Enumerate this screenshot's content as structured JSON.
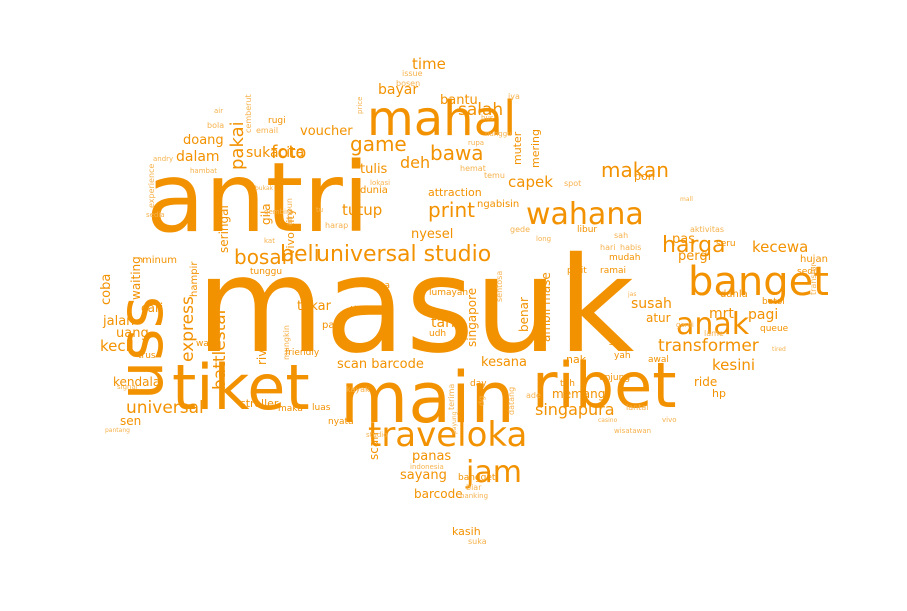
{
  "colors": {
    "background": "#ffffff",
    "word": "#f39200",
    "word_light": "#f6b24d"
  },
  "words": [
    {
      "t": "masuk"
    },
    {
      "t": "antri"
    },
    {
      "t": "tiket"
    },
    {
      "t": "main"
    },
    {
      "t": "uss"
    },
    {
      "t": "ribet"
    },
    {
      "t": "mahal"
    },
    {
      "t": "banget"
    },
    {
      "t": "traveloka"
    },
    {
      "t": "wahana"
    },
    {
      "t": "anak"
    },
    {
      "t": "jam"
    },
    {
      "t": "universal studio"
    },
    {
      "t": "bosan"
    },
    {
      "t": "beli"
    },
    {
      "t": "harga"
    },
    {
      "t": "makan"
    },
    {
      "t": "game"
    },
    {
      "t": "bawa"
    },
    {
      "t": "print"
    },
    {
      "t": "foto"
    },
    {
      "t": "pakai"
    },
    {
      "t": "salah"
    },
    {
      "t": "express"
    },
    {
      "t": "battlestar"
    },
    {
      "t": "universal"
    },
    {
      "t": "singapura"
    },
    {
      "t": "transformer"
    },
    {
      "t": "kecewa"
    },
    {
      "t": "kesini"
    },
    {
      "t": "capek"
    },
    {
      "t": "tutup"
    },
    {
      "t": "time"
    },
    {
      "t": "bayar"
    },
    {
      "t": "bantu"
    },
    {
      "t": "deh"
    },
    {
      "t": "dalam"
    },
    {
      "t": "sukacita"
    },
    {
      "t": "voucher"
    },
    {
      "t": "doang"
    },
    {
      "t": "tulis"
    },
    {
      "t": "nyesel"
    },
    {
      "t": "pas"
    },
    {
      "t": "pergi"
    },
    {
      "t": "susah"
    },
    {
      "t": "pagi"
    },
    {
      "t": "mrt"
    },
    {
      "t": "tukar"
    },
    {
      "t": "tarik"
    },
    {
      "t": "scan barcode"
    },
    {
      "t": "kesana"
    },
    {
      "t": "panas"
    },
    {
      "t": "sayang"
    },
    {
      "t": "barcode"
    },
    {
      "t": "scan"
    },
    {
      "t": "memang"
    },
    {
      "t": "ambil mase"
    },
    {
      "t": "benar"
    },
    {
      "t": "kecil"
    },
    {
      "t": "uang"
    },
    {
      "t": "jalan"
    },
    {
      "t": "coba"
    },
    {
      "t": "cari"
    },
    {
      "t": "kendala"
    },
    {
      "t": "waiting"
    },
    {
      "t": "sen"
    },
    {
      "t": "seringai"
    },
    {
      "t": "gila"
    },
    {
      "t": "vivo city"
    },
    {
      "t": "river raft"
    },
    {
      "t": "stroller"
    },
    {
      "t": "mering"
    },
    {
      "t": "muter"
    },
    {
      "t": "singapore"
    },
    {
      "t": "nak"
    },
    {
      "t": "ride"
    },
    {
      "t": "hp"
    },
    {
      "t": "atur"
    },
    {
      "t": "kasih"
    },
    {
      "t": "suka"
    },
    {
      "t": "pon"
    },
    {
      "t": "hujan"
    },
    {
      "t": "attraction"
    },
    {
      "t": "ngabisin"
    },
    {
      "t": "dunia"
    },
    {
      "t": "minum"
    },
    {
      "t": "hampir"
    },
    {
      "t": "wajib"
    },
    {
      "t": "trus"
    },
    {
      "t": "tipu"
    },
    {
      "t": "pass"
    },
    {
      "t": "udh"
    },
    {
      "t": "area"
    },
    {
      "t": "lumayan"
    },
    {
      "t": "tunggu"
    },
    {
      "t": "pelit"
    },
    {
      "t": "mudah"
    },
    {
      "t": "ramai"
    },
    {
      "t": "unjung"
    },
    {
      "t": "tuh"
    },
    {
      "t": "yah"
    },
    {
      "t": "awal"
    },
    {
      "t": "dahla"
    },
    {
      "t": "botol"
    },
    {
      "t": "queue"
    },
    {
      "t": "seru"
    },
    {
      "t": "sedih"
    },
    {
      "t": "transfer"
    },
    {
      "t": "issue"
    },
    {
      "t": "bosen"
    },
    {
      "t": "iya"
    },
    {
      "t": "rugi"
    },
    {
      "t": "email"
    },
    {
      "t": "bola"
    },
    {
      "t": "air"
    },
    {
      "t": "cemberut"
    },
    {
      "t": "experience"
    },
    {
      "t": "sedia"
    },
    {
      "t": "friendly"
    },
    {
      "t": "mungkin"
    },
    {
      "t": "maka"
    },
    {
      "t": "luas"
    },
    {
      "t": "nyata"
    },
    {
      "t": "day"
    },
    {
      "t": "dg"
    },
    {
      "t": "terima"
    },
    {
      "t": "datang"
    },
    {
      "t": "ade"
    },
    {
      "t": "lantai"
    },
    {
      "t": "bangget"
    },
    {
      "t": "biar"
    },
    {
      "t": "banking"
    },
    {
      "t": "indonesia"
    },
    {
      "t": "lame"
    },
    {
      "t": "ganti"
    },
    {
      "t": "sah"
    },
    {
      "t": "habis"
    },
    {
      "t": "aktivitas"
    },
    {
      "t": "temu"
    },
    {
      "t": "hemat"
    },
    {
      "t": "spot"
    },
    {
      "t": "gede"
    },
    {
      "t": "libur"
    },
    {
      "t": "long"
    },
    {
      "t": "hari"
    },
    {
      "t": "sentosa"
    },
    {
      "t": "harap"
    },
    {
      "t": "ampun"
    },
    {
      "t": "kayak"
    },
    {
      "t": "signal"
    },
    {
      "t": "gembira"
    },
    {
      "t": "kat"
    },
    {
      "t": "tu"
    },
    {
      "t": "andry"
    },
    {
      "t": "hambat"
    },
    {
      "t": "price"
    },
    {
      "t": "bus"
    },
    {
      "t": "rupa"
    },
    {
      "t": "nunggu"
    },
    {
      "t": "lokasi"
    },
    {
      "t": "bukak"
    },
    {
      "t": "jas"
    },
    {
      "t": "tired"
    },
    {
      "t": "vivo"
    },
    {
      "t": "casino"
    },
    {
      "t": "wisatawan"
    },
    {
      "t": "studio"
    },
    {
      "t": "pantang"
    },
    {
      "t": "payung"
    },
    {
      "t": "mall"
    },
    {
      "t": "g"
    }
  ]
}
